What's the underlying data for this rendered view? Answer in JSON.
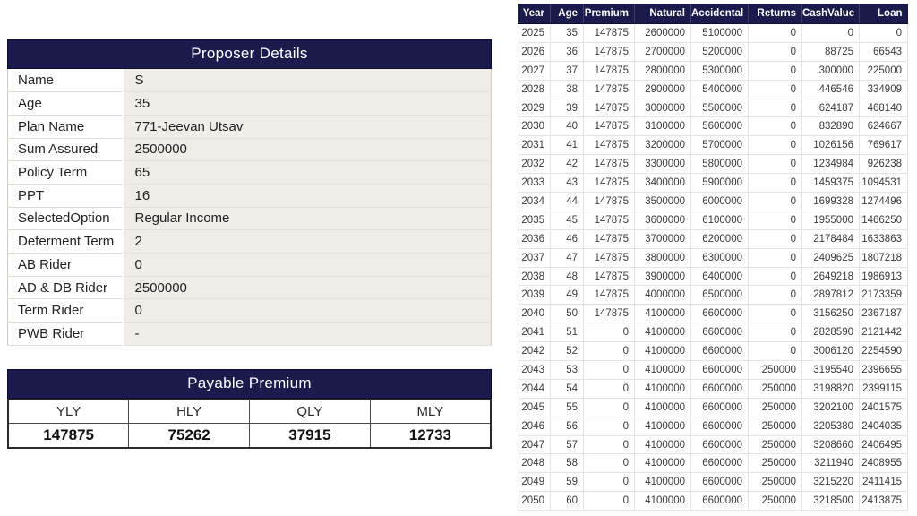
{
  "colors": {
    "header_bg": "#1a1a4d",
    "header_text": "#ffffff",
    "value_cell_bg": "#f0ede8"
  },
  "proposer_details": {
    "title": "Proposer Details",
    "rows": [
      {
        "label": "Name",
        "value": "S"
      },
      {
        "label": "Age",
        "value": "35"
      },
      {
        "label": "Plan Name",
        "value": "771-Jeevan Utsav"
      },
      {
        "label": "Sum Assured",
        "value": "2500000"
      },
      {
        "label": "Policy Term",
        "value": "65"
      },
      {
        "label": "PPT",
        "value": "16"
      },
      {
        "label": "SelectedOption",
        "value": "Regular Income"
      },
      {
        "label": "Deferment Term",
        "value": "2"
      },
      {
        "label": "AB Rider",
        "value": "0"
      },
      {
        "label": "AD & DB Rider",
        "value": "2500000"
      },
      {
        "label": "Term Rider",
        "value": "0"
      },
      {
        "label": "PWB Rider",
        "value": "-"
      }
    ]
  },
  "payable_premium": {
    "title": "Payable Premium",
    "modes": [
      "YLY",
      "HLY",
      "QLY",
      "MLY"
    ],
    "values": [
      "147875",
      "75262",
      "37915",
      "12733"
    ]
  },
  "projection_table": {
    "headers": [
      "Year",
      "Age",
      "Premium",
      "Natural",
      "Accidental",
      "Returns",
      "CashValue",
      "Loan"
    ],
    "rows": [
      [
        "2025",
        "35",
        "147875",
        "2600000",
        "5100000",
        "0",
        "0",
        "0"
      ],
      [
        "2026",
        "36",
        "147875",
        "2700000",
        "5200000",
        "0",
        "88725",
        "66543"
      ],
      [
        "2027",
        "37",
        "147875",
        "2800000",
        "5300000",
        "0",
        "300000",
        "225000"
      ],
      [
        "2028",
        "38",
        "147875",
        "2900000",
        "5400000",
        "0",
        "446546",
        "334909"
      ],
      [
        "2029",
        "39",
        "147875",
        "3000000",
        "5500000",
        "0",
        "624187",
        "468140"
      ],
      [
        "2030",
        "40",
        "147875",
        "3100000",
        "5600000",
        "0",
        "832890",
        "624667"
      ],
      [
        "2031",
        "41",
        "147875",
        "3200000",
        "5700000",
        "0",
        "1026156",
        "769617"
      ],
      [
        "2032",
        "42",
        "147875",
        "3300000",
        "5800000",
        "0",
        "1234984",
        "926238"
      ],
      [
        "2033",
        "43",
        "147875",
        "3400000",
        "5900000",
        "0",
        "1459375",
        "1094531"
      ],
      [
        "2034",
        "44",
        "147875",
        "3500000",
        "6000000",
        "0",
        "1699328",
        "1274496"
      ],
      [
        "2035",
        "45",
        "147875",
        "3600000",
        "6100000",
        "0",
        "1955000",
        "1466250"
      ],
      [
        "2036",
        "46",
        "147875",
        "3700000",
        "6200000",
        "0",
        "2178484",
        "1633863"
      ],
      [
        "2037",
        "47",
        "147875",
        "3800000",
        "6300000",
        "0",
        "2409625",
        "1807218"
      ],
      [
        "2038",
        "48",
        "147875",
        "3900000",
        "6400000",
        "0",
        "2649218",
        "1986913"
      ],
      [
        "2039",
        "49",
        "147875",
        "4000000",
        "6500000",
        "0",
        "2897812",
        "2173359"
      ],
      [
        "2040",
        "50",
        "147875",
        "4100000",
        "6600000",
        "0",
        "3156250",
        "2367187"
      ],
      [
        "2041",
        "51",
        "0",
        "4100000",
        "6600000",
        "0",
        "2828590",
        "2121442"
      ],
      [
        "2042",
        "52",
        "0",
        "4100000",
        "6600000",
        "0",
        "3006120",
        "2254590"
      ],
      [
        "2043",
        "53",
        "0",
        "4100000",
        "6600000",
        "250000",
        "3195540",
        "2396655"
      ],
      [
        "2044",
        "54",
        "0",
        "4100000",
        "6600000",
        "250000",
        "3198820",
        "2399115"
      ],
      [
        "2045",
        "55",
        "0",
        "4100000",
        "6600000",
        "250000",
        "3202100",
        "2401575"
      ],
      [
        "2046",
        "56",
        "0",
        "4100000",
        "6600000",
        "250000",
        "3205380",
        "2404035"
      ],
      [
        "2047",
        "57",
        "0",
        "4100000",
        "6600000",
        "250000",
        "3208660",
        "2406495"
      ],
      [
        "2048",
        "58",
        "0",
        "4100000",
        "6600000",
        "250000",
        "3211940",
        "2408955"
      ],
      [
        "2049",
        "59",
        "0",
        "4100000",
        "6600000",
        "250000",
        "3215220",
        "2411415"
      ],
      [
        "2050",
        "60",
        "0",
        "4100000",
        "6600000",
        "250000",
        "3218500",
        "2413875"
      ]
    ]
  }
}
